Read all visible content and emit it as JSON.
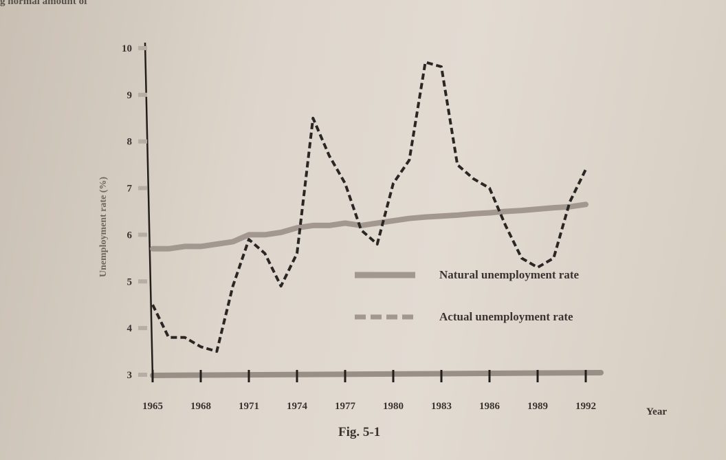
{
  "page": {
    "top_text": "g normal amount of",
    "caption": "Fig. 5-1"
  },
  "colors": {
    "natural": "#a39890",
    "actual": "#2a2624",
    "axis": "#221e1c"
  },
  "chart_data": {
    "type": "line",
    "title": "",
    "xlabel": "Year",
    "ylabel": "Unemployment rate (%)",
    "xlim": [
      1965,
      1992
    ],
    "ylim": [
      3,
      10
    ],
    "x_ticks": [
      1965,
      1968,
      1971,
      1974,
      1977,
      1980,
      1983,
      1986,
      1989,
      1992
    ],
    "y_ticks": [
      3,
      4,
      5,
      6,
      7,
      8,
      9,
      10
    ],
    "legend_position": "center-right",
    "series": [
      {
        "name": "Natural unemployment rate",
        "style": "solid",
        "points": [
          [
            1965,
            5.7
          ],
          [
            1966,
            5.7
          ],
          [
            1967,
            5.75
          ],
          [
            1968,
            5.75
          ],
          [
            1969,
            5.8
          ],
          [
            1970,
            5.85
          ],
          [
            1971,
            6.0
          ],
          [
            1972,
            6.0
          ],
          [
            1973,
            6.05
          ],
          [
            1974,
            6.15
          ],
          [
            1975,
            6.2
          ],
          [
            1976,
            6.2
          ],
          [
            1977,
            6.25
          ],
          [
            1978,
            6.2
          ],
          [
            1979,
            6.25
          ],
          [
            1980,
            6.3
          ],
          [
            1981,
            6.35
          ],
          [
            1982,
            6.38
          ],
          [
            1983,
            6.4
          ],
          [
            1984,
            6.42
          ],
          [
            1985,
            6.45
          ],
          [
            1986,
            6.47
          ],
          [
            1987,
            6.5
          ],
          [
            1988,
            6.52
          ],
          [
            1989,
            6.55
          ],
          [
            1990,
            6.58
          ],
          [
            1991,
            6.6
          ],
          [
            1992,
            6.65
          ]
        ]
      },
      {
        "name": "Actual unemployment rate",
        "style": "dashed",
        "points": [
          [
            1965,
            4.5
          ],
          [
            1966,
            3.8
          ],
          [
            1967,
            3.8
          ],
          [
            1968,
            3.6
          ],
          [
            1969,
            3.5
          ],
          [
            1970,
            4.9
          ],
          [
            1971,
            5.9
          ],
          [
            1972,
            5.6
          ],
          [
            1973,
            4.9
          ],
          [
            1974,
            5.6
          ],
          [
            1975,
            8.5
          ],
          [
            1976,
            7.7
          ],
          [
            1977,
            7.1
          ],
          [
            1978,
            6.1
          ],
          [
            1979,
            5.8
          ],
          [
            1980,
            7.1
          ],
          [
            1981,
            7.6
          ],
          [
            1982,
            9.7
          ],
          [
            1983,
            9.6
          ],
          [
            1984,
            7.5
          ],
          [
            1985,
            7.2
          ],
          [
            1986,
            7.0
          ],
          [
            1987,
            6.2
          ],
          [
            1988,
            5.5
          ],
          [
            1989,
            5.3
          ],
          [
            1990,
            5.5
          ],
          [
            1991,
            6.7
          ],
          [
            1992,
            7.4
          ]
        ]
      }
    ]
  }
}
